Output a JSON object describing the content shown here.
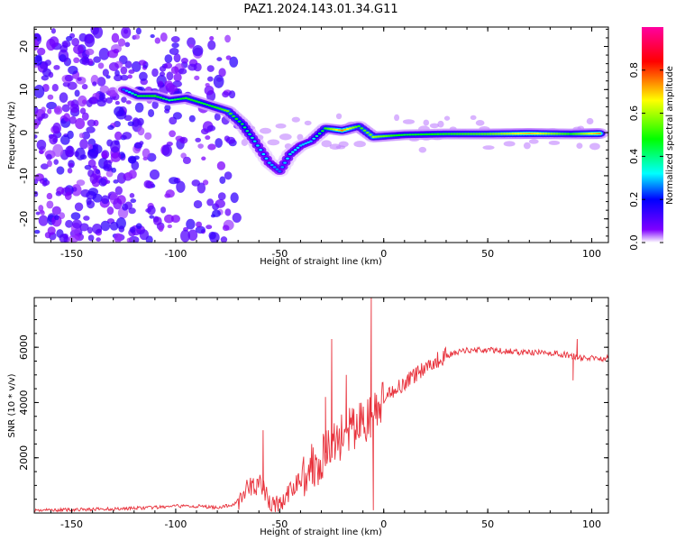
{
  "figure": {
    "title": "PAZ1.2024.143.01.34.G11"
  },
  "chart_data": [
    {
      "type": "heatmap",
      "title": "PAZ1.2024.143.01.34.G11",
      "xlabel": "Height of straight line (km)",
      "ylabel": "Frequency (Hz)",
      "xlim": [
        -168,
        108
      ],
      "ylim": [
        -25.5,
        24.5
      ],
      "xticks": [
        -150,
        -100,
        -50,
        0,
        50,
        100
      ],
      "yticks": [
        -20,
        -10,
        0,
        10,
        20
      ],
      "colorbar": {
        "label": "Normalized spectral amplitude",
        "range": [
          0,
          1
        ],
        "ticks": [
          0.0,
          0.2,
          0.4,
          0.6,
          0.8
        ],
        "tick_labels": [
          "0.0",
          "0.2",
          "0.4",
          "0.6",
          "0.8"
        ],
        "colormap": [
          "#ffffff",
          "#7f00ff",
          "#0000ff",
          "#00ffff",
          "#00ff00",
          "#ffff00",
          "#ff0000",
          "#ff00a0"
        ]
      },
      "ridge": [
        {
          "x": -125,
          "y": 10,
          "amp": 0.25
        },
        {
          "x": -118,
          "y": 8.5,
          "amp": 0.45
        },
        {
          "x": -110,
          "y": 8.5,
          "amp": 0.5
        },
        {
          "x": -103,
          "y": 7.5,
          "amp": 0.4
        },
        {
          "x": -95,
          "y": 8,
          "amp": 0.5
        },
        {
          "x": -85,
          "y": 6.5,
          "amp": 0.45
        },
        {
          "x": -75,
          "y": 5,
          "amp": 0.55
        },
        {
          "x": -68,
          "y": 2,
          "amp": 0.45
        },
        {
          "x": -62,
          "y": -2,
          "amp": 0.35
        },
        {
          "x": -55,
          "y": -7,
          "amp": 0.3
        },
        {
          "x": -50,
          "y": -9,
          "amp": 0.25
        },
        {
          "x": -45,
          "y": -5,
          "amp": 0.35
        },
        {
          "x": -40,
          "y": -3,
          "amp": 0.3
        },
        {
          "x": -35,
          "y": -2,
          "amp": 0.3
        },
        {
          "x": -28,
          "y": 1,
          "amp": 0.5
        },
        {
          "x": -20,
          "y": 0.5,
          "amp": 0.75
        },
        {
          "x": -12,
          "y": 1.5,
          "amp": 0.5
        },
        {
          "x": -5,
          "y": -1,
          "amp": 0.6
        },
        {
          "x": 10,
          "y": -0.5,
          "amp": 0.45
        },
        {
          "x": 30,
          "y": -0.3,
          "amp": 0.5
        },
        {
          "x": 50,
          "y": -0.3,
          "amp": 0.55
        },
        {
          "x": 70,
          "y": -0.2,
          "amp": 0.7
        },
        {
          "x": 90,
          "y": -0.3,
          "amp": 0.5
        },
        {
          "x": 105,
          "y": -0.2,
          "amp": 0.75
        }
      ]
    },
    {
      "type": "line",
      "xlabel": "Height of straight line (km)",
      "ylabel": "SNR (10 * v/v)",
      "xlim": [
        -168,
        108
      ],
      "ylim": [
        0,
        7800
      ],
      "xticks": [
        -150,
        -100,
        -50,
        0,
        50,
        100
      ],
      "yticks": [
        2000,
        4000,
        6000
      ],
      "color": "#e8323c",
      "series": [
        {
          "x": [
            -168,
            -150,
            -130,
            -110,
            -100,
            -90,
            -80,
            -72,
            -68,
            -64,
            -60,
            -57,
            -55,
            -52,
            -50,
            -45,
            -42,
            -40,
            -35,
            -30,
            -25,
            -22,
            -20,
            -15,
            -10,
            -5,
            0,
            5,
            10,
            15,
            20,
            25,
            30,
            35,
            40,
            50,
            60,
            70,
            80,
            90,
            95,
            100,
            108
          ],
          "y": [
            100,
            120,
            150,
            200,
            250,
            250,
            200,
            300,
            700,
            900,
            1100,
            700,
            400,
            300,
            300,
            700,
            1100,
            1300,
            1700,
            2000,
            2400,
            2700,
            2800,
            3000,
            3300,
            3500,
            4000,
            4500,
            4700,
            5000,
            5300,
            5500,
            5700,
            5800,
            5900,
            5900,
            5850,
            5800,
            5800,
            5700,
            5600,
            5600,
            5600
          ]
        }
      ],
      "spikes": [
        {
          "x": -58,
          "y": 3000
        },
        {
          "x": -28,
          "y": 4200
        },
        {
          "x": -25,
          "y": 6300
        },
        {
          "x": -18,
          "y": 5000
        },
        {
          "x": -6,
          "y": 7800
        },
        {
          "x": -5,
          "y": 100
        },
        {
          "x": 93,
          "y": 6300
        },
        {
          "x": 91,
          "y": 4800
        }
      ]
    }
  ]
}
